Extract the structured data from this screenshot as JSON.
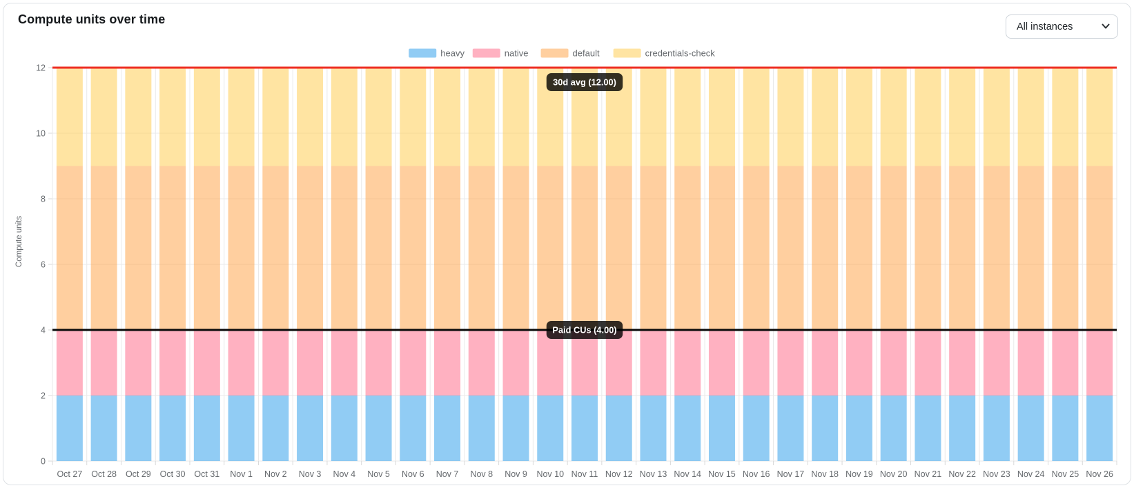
{
  "card": {
    "title": "Compute units over time"
  },
  "controls": {
    "instance_filter": {
      "value": "All instances"
    }
  },
  "chart_data": {
    "type": "bar",
    "stacked": true,
    "title": "Compute units over time",
    "xlabel": "",
    "ylabel": "Compute units",
    "ylim": [
      0,
      12
    ],
    "ytick_step": 2,
    "grid": true,
    "legend_position": "top",
    "categories": [
      "Oct 27",
      "Oct 28",
      "Oct 29",
      "Oct 30",
      "Oct 31",
      "Nov 1",
      "Nov 2",
      "Nov 3",
      "Nov 4",
      "Nov 5",
      "Nov 6",
      "Nov 7",
      "Nov 8",
      "Nov 9",
      "Nov 10",
      "Nov 11",
      "Nov 12",
      "Nov 13",
      "Nov 14",
      "Nov 15",
      "Nov 16",
      "Nov 17",
      "Nov 18",
      "Nov 19",
      "Nov 20",
      "Nov 21",
      "Nov 22",
      "Nov 23",
      "Nov 24",
      "Nov 25",
      "Nov 26"
    ],
    "series": [
      {
        "name": "heavy",
        "color": "rgba(54,162,235,0.55)",
        "values": [
          2,
          2,
          2,
          2,
          2,
          2,
          2,
          2,
          2,
          2,
          2,
          2,
          2,
          2,
          2,
          2,
          2,
          2,
          2,
          2,
          2,
          2,
          2,
          2,
          2,
          2,
          2,
          2,
          2,
          2,
          2
        ]
      },
      {
        "name": "native",
        "color": "rgba(255,99,132,0.5)",
        "values": [
          2,
          2,
          2,
          2,
          2,
          2,
          2,
          2,
          2,
          2,
          2,
          2,
          2,
          2,
          2,
          2,
          2,
          2,
          2,
          2,
          2,
          2,
          2,
          2,
          2,
          2,
          2,
          2,
          2,
          2,
          2
        ]
      },
      {
        "name": "default",
        "color": "rgba(255,159,64,0.5)",
        "values": [
          5,
          5,
          5,
          5,
          5,
          5,
          5,
          5,
          5,
          5,
          5,
          5,
          5,
          5,
          5,
          5,
          5,
          5,
          5,
          5,
          5,
          5,
          5,
          5,
          5,
          5,
          5,
          5,
          5,
          5,
          5
        ]
      },
      {
        "name": "credentials-check",
        "color": "rgba(255,205,86,0.55)",
        "values": [
          3,
          3,
          3,
          3,
          3,
          3,
          3,
          3,
          3,
          3,
          3,
          3,
          3,
          3,
          3,
          3,
          3,
          3,
          3,
          3,
          3,
          3,
          3,
          3,
          3,
          3,
          3,
          3,
          3,
          3,
          3
        ]
      }
    ],
    "annotations": [
      {
        "label": "30d avg (12.00)",
        "value": 12,
        "line_color": "#ee2e22",
        "label_bg": "rgba(0,0,0,0.8)",
        "label_text_color": "#ffffff",
        "label_position": "below"
      },
      {
        "label": "Paid CUs (4.00)",
        "value": 4,
        "line_color": "#0a0a0a",
        "label_bg": "rgba(0,0,0,0.8)",
        "label_text_color": "#ffffff",
        "label_position": "center"
      }
    ]
  }
}
